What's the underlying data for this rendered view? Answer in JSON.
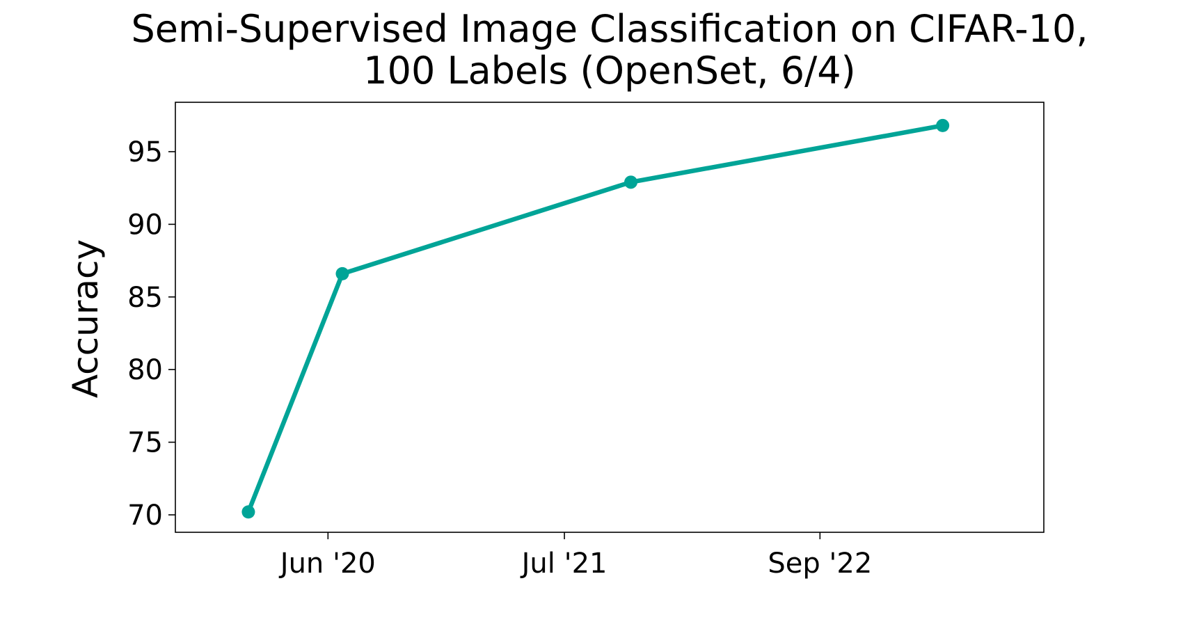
{
  "chart_data": {
    "type": "line",
    "title_line1": "Semi-Supervised Image Classification on CIFAR-10,",
    "title_line2": "100 Labels (OpenSet, 6/4)",
    "xlabel": "",
    "ylabel": "Accuracy",
    "x_axis_type": "date",
    "xlim": [
      "2019-09-20",
      "2023-09-10"
    ],
    "ylim": [
      68.8,
      98.4
    ],
    "xticks": [
      {
        "label": "Jun '20",
        "date": "2020-06-01"
      },
      {
        "label": "Jul '21",
        "date": "2021-07-01"
      },
      {
        "label": "Sep '22",
        "date": "2022-09-01"
      }
    ],
    "yticks": [
      70,
      75,
      80,
      85,
      90,
      95
    ],
    "grid": false,
    "series": [
      {
        "color": "#00a497",
        "points": [
          {
            "x": "2020-01-20",
            "y": 70.2
          },
          {
            "x": "2020-06-25",
            "y": 86.6
          },
          {
            "x": "2021-10-20",
            "y": 92.9
          },
          {
            "x": "2023-03-25",
            "y": 96.8
          }
        ]
      }
    ]
  }
}
